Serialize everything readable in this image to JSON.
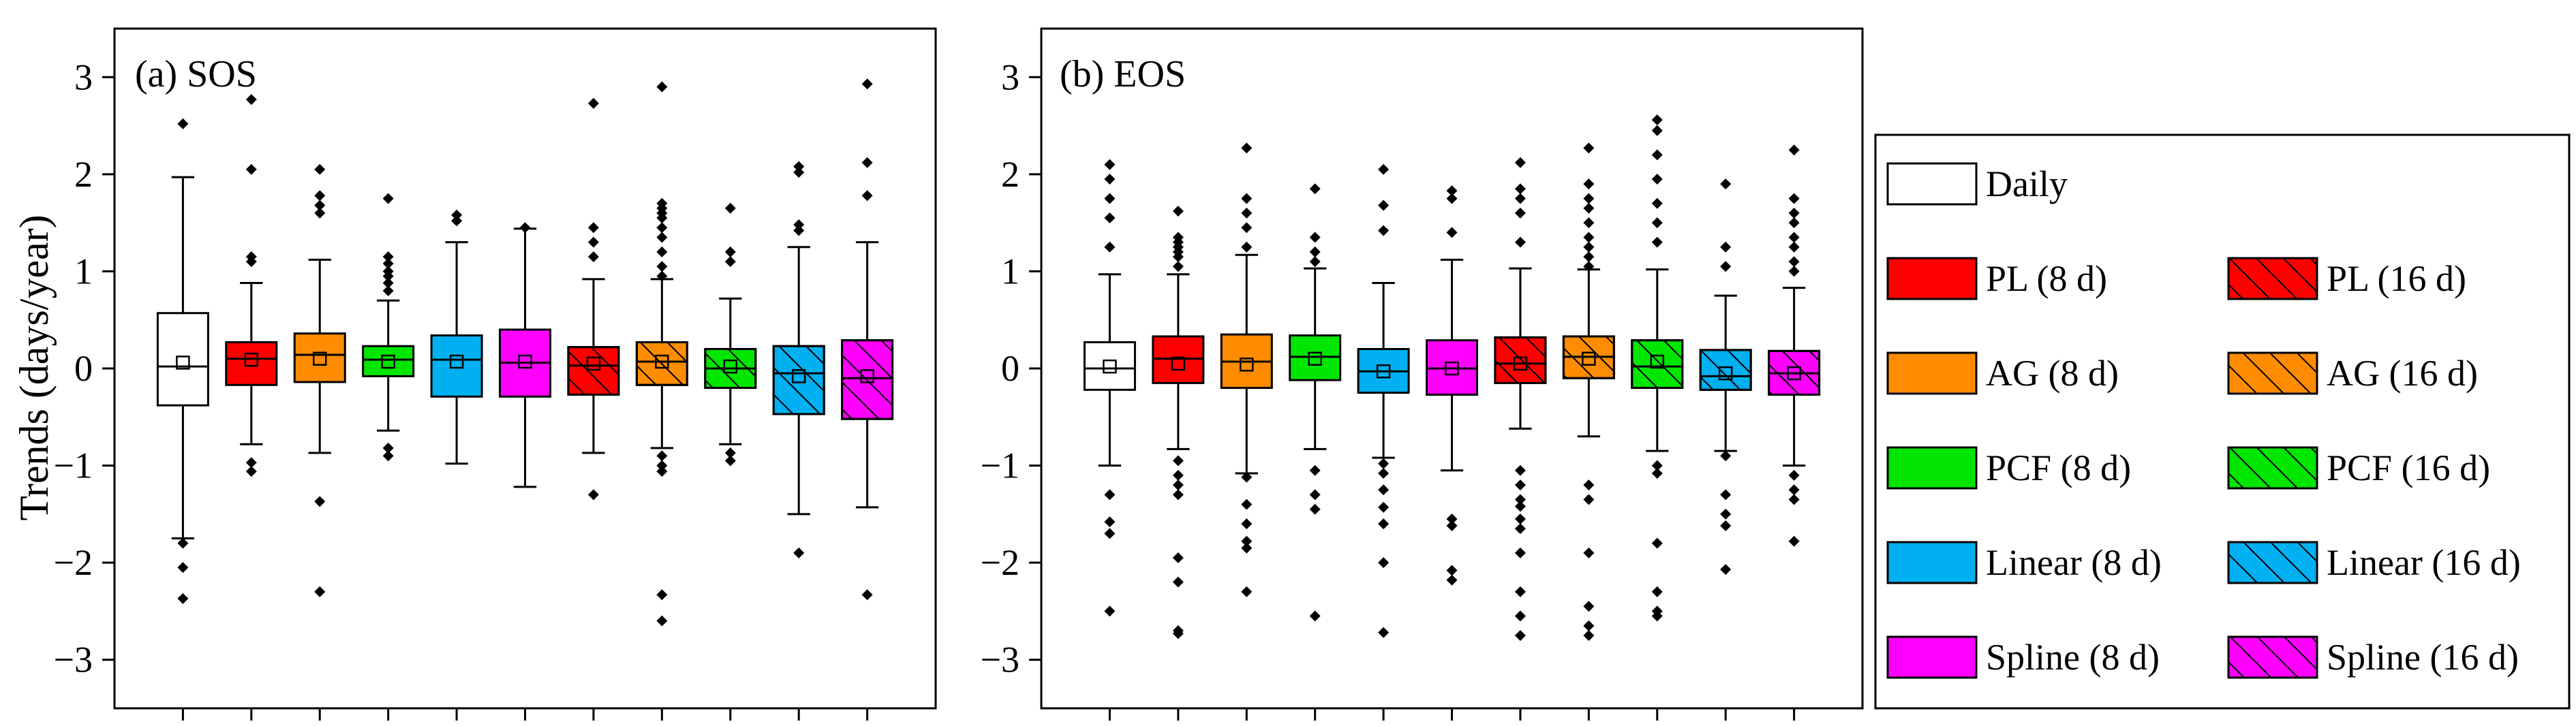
{
  "chart_data": [
    {
      "type": "box",
      "title": "(a) SOS",
      "ylabel": "Trends (days/year)",
      "ylim": [
        -3.5,
        3.5
      ],
      "yticks": [
        -3,
        -2,
        -1,
        0,
        1,
        2,
        3
      ],
      "boxes": [
        {
          "method": "Daily",
          "color": "#ffffff",
          "hatched": false,
          "whisker_low": -1.75,
          "q1": -0.38,
          "median": 0.02,
          "mean": 0.06,
          "q3": 0.57,
          "whisker_high": 1.97,
          "outliers": [
            2.52,
            -1.8,
            -2.05,
            -2.37
          ]
        },
        {
          "method": "PL (8 d)",
          "color": "#ff0000",
          "hatched": false,
          "whisker_low": -0.78,
          "q1": -0.17,
          "median": 0.1,
          "mean": 0.09,
          "q3": 0.27,
          "whisker_high": 0.88,
          "outliers": [
            2.77,
            2.05,
            1.15,
            1.1,
            -0.97,
            -1.06
          ]
        },
        {
          "method": "AG (8 d)",
          "color": "#ff8c00",
          "hatched": false,
          "whisker_low": -0.87,
          "q1": -0.14,
          "median": 0.14,
          "mean": 0.1,
          "q3": 0.36,
          "whisker_high": 1.12,
          "outliers": [
            2.05,
            1.78,
            1.68,
            1.6,
            -1.37,
            -2.3
          ]
        },
        {
          "method": "PCF (8 d)",
          "color": "#00e600",
          "hatched": false,
          "whisker_low": -0.64,
          "q1": -0.08,
          "median": 0.09,
          "mean": 0.07,
          "q3": 0.23,
          "whisker_high": 0.7,
          "outliers": [
            1.75,
            1.15,
            1.08,
            1.0,
            0.95,
            0.88,
            0.8,
            -0.82,
            -0.9
          ]
        },
        {
          "method": "Linear (8 d)",
          "color": "#00b0f0",
          "hatched": false,
          "whisker_low": -0.98,
          "q1": -0.29,
          "median": 0.09,
          "mean": 0.07,
          "q3": 0.34,
          "whisker_high": 1.3,
          "outliers": [
            1.58,
            1.52
          ]
        },
        {
          "method": "Spline (8 d)",
          "color": "#ff00ff",
          "hatched": false,
          "whisker_low": -1.22,
          "q1": -0.29,
          "median": 0.06,
          "mean": 0.07,
          "q3": 0.4,
          "whisker_high": 1.44,
          "outliers": [
            1.45
          ]
        },
        {
          "method": "PL (16 d)",
          "color": "#ff0000",
          "hatched": true,
          "whisker_low": -0.87,
          "q1": -0.27,
          "median": 0.03,
          "mean": 0.05,
          "q3": 0.22,
          "whisker_high": 0.92,
          "outliers": [
            2.73,
            1.45,
            1.3,
            1.15,
            -1.3
          ]
        },
        {
          "method": "AG (16 d)",
          "color": "#ff8c00",
          "hatched": true,
          "whisker_low": -0.82,
          "q1": -0.17,
          "median": 0.07,
          "mean": 0.07,
          "q3": 0.27,
          "whisker_high": 0.92,
          "outliers": [
            2.9,
            1.7,
            1.65,
            1.6,
            1.55,
            1.45,
            1.35,
            1.2,
            1.05,
            0.95,
            -0.9,
            -1.0,
            -1.06,
            -2.33,
            -2.6
          ]
        },
        {
          "method": "PCF (16 d)",
          "color": "#00e600",
          "hatched": true,
          "whisker_low": -0.78,
          "q1": -0.2,
          "median": 0.0,
          "mean": 0.02,
          "q3": 0.2,
          "whisker_high": 0.72,
          "outliers": [
            1.65,
            1.2,
            1.1,
            -0.87,
            -0.95
          ]
        },
        {
          "method": "Linear (16 d)",
          "color": "#00b0f0",
          "hatched": true,
          "whisker_low": -1.5,
          "q1": -0.47,
          "median": -0.05,
          "mean": -0.08,
          "q3": 0.23,
          "whisker_high": 1.25,
          "outliers": [
            2.08,
            2.02,
            1.48,
            1.42,
            -1.9
          ]
        },
        {
          "method": "Spline (16 d)",
          "color": "#ff00ff",
          "hatched": true,
          "whisker_low": -1.43,
          "q1": -0.52,
          "median": -0.1,
          "mean": -0.08,
          "q3": 0.29,
          "whisker_high": 1.3,
          "outliers": [
            2.93,
            2.12,
            1.78,
            -2.33
          ]
        }
      ]
    },
    {
      "type": "box",
      "title": "(b) EOS",
      "ylabel": "",
      "ylim": [
        -3.5,
        3.5
      ],
      "yticks": [
        -3,
        -2,
        -1,
        0,
        1,
        2,
        3
      ],
      "boxes": [
        {
          "method": "Daily",
          "color": "#ffffff",
          "hatched": false,
          "whisker_low": -1.0,
          "q1": -0.22,
          "median": 0.0,
          "mean": 0.02,
          "q3": 0.27,
          "whisker_high": 0.97,
          "outliers": [
            2.1,
            1.95,
            1.75,
            1.55,
            1.25,
            -1.3,
            -1.58,
            -1.7,
            -2.5
          ]
        },
        {
          "method": "PL (8 d)",
          "color": "#ff0000",
          "hatched": false,
          "whisker_low": -0.83,
          "q1": -0.15,
          "median": 0.1,
          "mean": 0.05,
          "q3": 0.33,
          "whisker_high": 0.97,
          "outliers": [
            1.62,
            1.35,
            1.3,
            1.25,
            1.2,
            1.15,
            1.05,
            -0.95,
            -1.1,
            -1.2,
            -1.3,
            -1.95,
            -2.2,
            -2.7,
            -2.73
          ]
        },
        {
          "method": "AG (8 d)",
          "color": "#ff8c00",
          "hatched": false,
          "whisker_low": -1.08,
          "q1": -0.2,
          "median": 0.07,
          "mean": 0.04,
          "q3": 0.35,
          "whisker_high": 1.17,
          "outliers": [
            2.27,
            1.75,
            1.6,
            1.45,
            1.25,
            -1.12,
            -1.4,
            -1.6,
            -1.78,
            -1.85,
            -2.3
          ]
        },
        {
          "method": "PCF (8 d)",
          "color": "#00e600",
          "hatched": false,
          "whisker_low": -0.83,
          "q1": -0.12,
          "median": 0.12,
          "mean": 0.1,
          "q3": 0.34,
          "whisker_high": 1.03,
          "outliers": [
            1.85,
            1.35,
            1.2,
            1.1,
            -1.05,
            -1.3,
            -1.45,
            -2.55
          ]
        },
        {
          "method": "Linear (8 d)",
          "color": "#00b0f0",
          "hatched": false,
          "whisker_low": -0.92,
          "q1": -0.25,
          "median": -0.03,
          "mean": -0.03,
          "q3": 0.2,
          "whisker_high": 0.88,
          "outliers": [
            2.05,
            1.68,
            1.42,
            -0.98,
            -1.08,
            -1.25,
            -1.43,
            -1.6,
            -2.0,
            -2.72
          ]
        },
        {
          "method": "Spline (8 d)",
          "color": "#ff00ff",
          "hatched": false,
          "whisker_low": -1.05,
          "q1": -0.27,
          "median": 0.0,
          "mean": 0.0,
          "q3": 0.29,
          "whisker_high": 1.12,
          "outliers": [
            1.83,
            1.75,
            1.4,
            -1.55,
            -1.62,
            -2.08,
            -2.18
          ]
        },
        {
          "method": "PL (16 d)",
          "color": "#ff0000",
          "hatched": true,
          "whisker_low": -0.62,
          "q1": -0.15,
          "median": 0.05,
          "mean": 0.05,
          "q3": 0.32,
          "whisker_high": 1.03,
          "outliers": [
            2.12,
            1.85,
            1.75,
            1.6,
            1.3,
            -1.05,
            -1.2,
            -1.35,
            -1.42,
            -1.55,
            -1.65,
            -1.9,
            -2.3,
            -2.55,
            -2.75
          ]
        },
        {
          "method": "AG (16 d)",
          "color": "#ff8c00",
          "hatched": true,
          "whisker_low": -0.7,
          "q1": -0.1,
          "median": 0.12,
          "mean": 0.1,
          "q3": 0.33,
          "whisker_high": 1.02,
          "outliers": [
            2.27,
            1.9,
            1.75,
            1.65,
            1.5,
            1.35,
            1.25,
            1.15,
            1.05,
            -1.2,
            -1.35,
            -1.9,
            -2.45,
            -2.65,
            -2.75
          ]
        },
        {
          "method": "PCF (16 d)",
          "color": "#00e600",
          "hatched": true,
          "whisker_low": -0.85,
          "q1": -0.2,
          "median": 0.02,
          "mean": 0.07,
          "q3": 0.29,
          "whisker_high": 1.02,
          "outliers": [
            2.56,
            2.45,
            2.2,
            1.95,
            1.7,
            1.5,
            1.3,
            -1.0,
            -1.08,
            -1.8,
            -2.3,
            -2.5,
            -2.55
          ]
        },
        {
          "method": "Linear (16 d)",
          "color": "#00b0f0",
          "hatched": true,
          "whisker_low": -0.85,
          "q1": -0.22,
          "median": -0.08,
          "mean": -0.05,
          "q3": 0.19,
          "whisker_high": 0.75,
          "outliers": [
            1.9,
            1.25,
            1.05,
            -0.9,
            -1.3,
            -1.5,
            -1.62,
            -2.07
          ]
        },
        {
          "method": "Spline (16 d)",
          "color": "#ff00ff",
          "hatched": true,
          "whisker_low": -1.0,
          "q1": -0.27,
          "median": -0.05,
          "mean": -0.05,
          "q3": 0.18,
          "whisker_high": 0.83,
          "outliers": [
            2.25,
            1.75,
            1.6,
            1.5,
            1.35,
            1.25,
            1.1,
            1.0,
            -1.1,
            -1.25,
            -1.35,
            -1.78
          ]
        }
      ]
    }
  ],
  "legend": [
    {
      "label": "Daily",
      "color": "#ffffff",
      "hatched": false
    },
    {
      "label": "PL (8 d)",
      "color": "#ff0000",
      "hatched": false
    },
    {
      "label": "PL (16 d)",
      "color": "#ff0000",
      "hatched": true
    },
    {
      "label": "AG (8 d)",
      "color": "#ff8c00",
      "hatched": false
    },
    {
      "label": "AG (16 d)",
      "color": "#ff8c00",
      "hatched": true
    },
    {
      "label": "PCF (8 d)",
      "color": "#00e600",
      "hatched": false
    },
    {
      "label": "PCF (16 d)",
      "color": "#00e600",
      "hatched": true
    },
    {
      "label": "Linear (8 d)",
      "color": "#00b0f0",
      "hatched": false
    },
    {
      "label": "Linear (16 d)",
      "color": "#00b0f0",
      "hatched": true
    },
    {
      "label": "Spline (8 d)",
      "color": "#ff00ff",
      "hatched": false
    },
    {
      "label": "Spline (16 d)",
      "color": "#ff00ff",
      "hatched": true
    }
  ]
}
